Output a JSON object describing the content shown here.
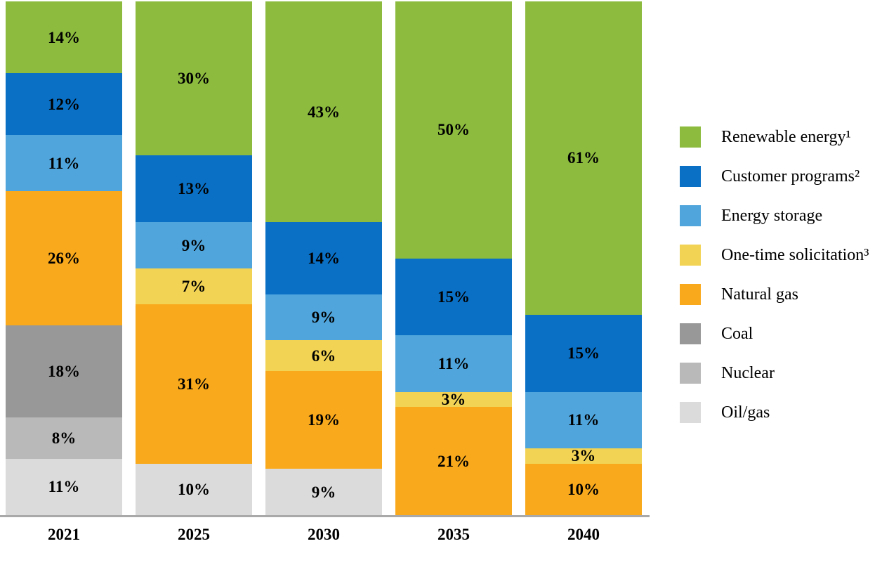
{
  "chart_data": {
    "type": "bar",
    "variant": "stacked-100-percent",
    "title": "",
    "xlabel": "",
    "ylabel": "",
    "ylim": [
      0,
      100
    ],
    "grid": false,
    "legend_position": "right",
    "value_suffix": "%",
    "axis_line_color": "#a9a9a9",
    "categories": [
      "2021",
      "2025",
      "2030",
      "2035",
      "2040"
    ],
    "series": [
      {
        "key": "renewable-energy",
        "name": "Renewable energy¹",
        "color": "#8cbb3e",
        "values": [
          14,
          30,
          43,
          50,
          61
        ]
      },
      {
        "key": "customer-programs",
        "name": "Customer programs²",
        "color": "#0a70c6",
        "values": [
          12,
          13,
          14,
          15,
          15
        ]
      },
      {
        "key": "energy-storage",
        "name": "Energy storage",
        "color": "#4fa5dc",
        "values": [
          11,
          9,
          9,
          11,
          11
        ]
      },
      {
        "key": "one-time-solicitation",
        "name": "One-time solicitation³",
        "color": "#f2d354",
        "values": [
          0,
          7,
          6,
          3,
          3
        ]
      },
      {
        "key": "natural-gas",
        "name": "Natural gas",
        "color": "#f9a91c",
        "values": [
          26,
          31,
          19,
          21,
          10
        ]
      },
      {
        "key": "coal",
        "name": "Coal",
        "color": "#989898",
        "values": [
          18,
          0,
          0,
          0,
          0
        ]
      },
      {
        "key": "nuclear",
        "name": "Nuclear",
        "color": "#b9b9b9",
        "values": [
          8,
          0,
          0,
          0,
          0
        ]
      },
      {
        "key": "oil-gas",
        "name": "Oil/gas",
        "color": "#dbdbdb",
        "values": [
          11,
          10,
          9,
          0,
          0
        ]
      }
    ]
  }
}
